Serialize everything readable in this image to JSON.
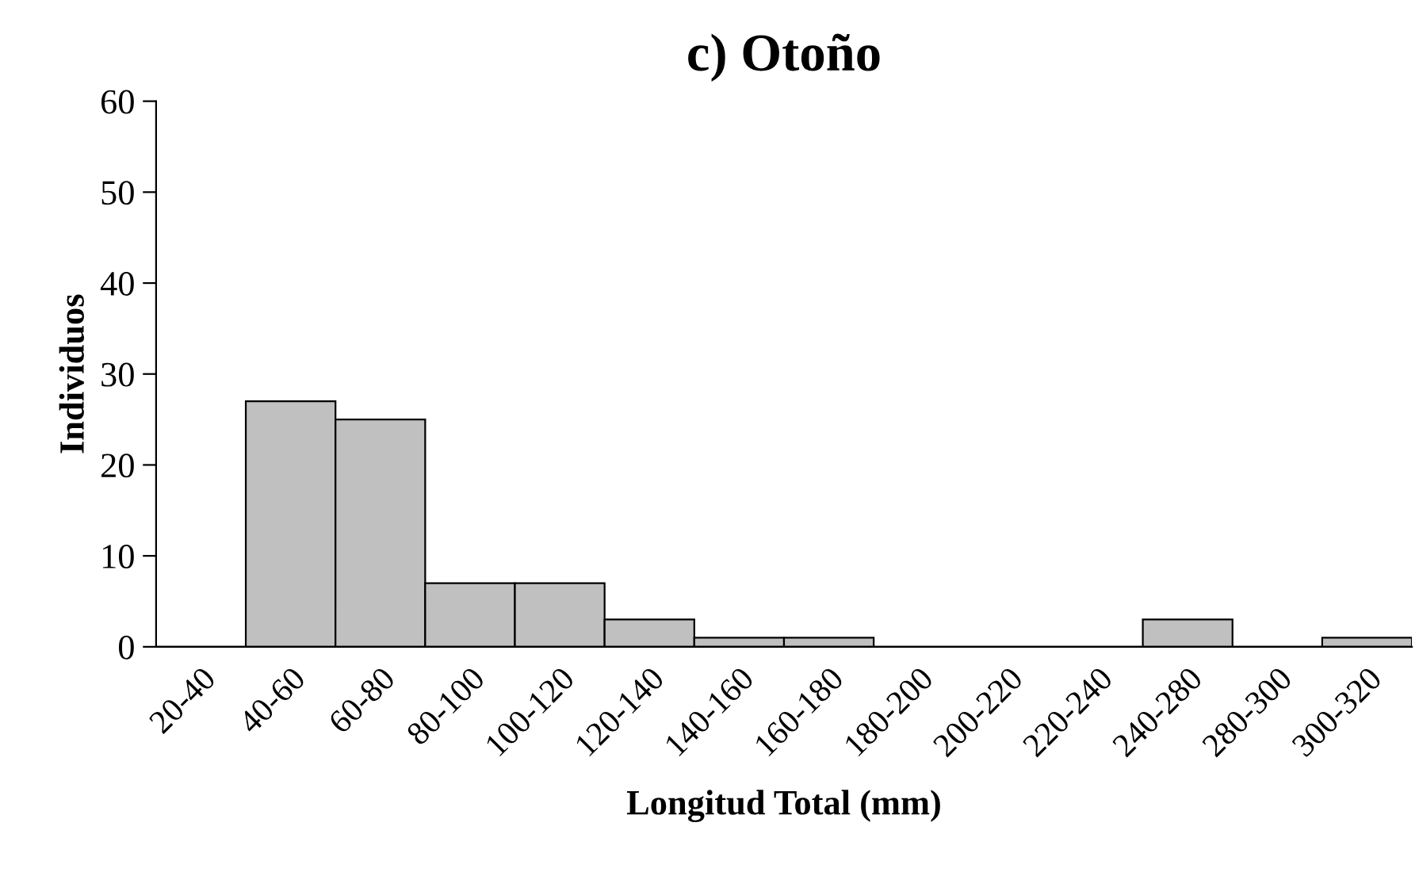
{
  "chart_data": {
    "type": "bar",
    "title": "c) Otoño",
    "xlabel": "Longitud Total (mm)",
    "ylabel": "Individuos",
    "categories": [
      "20-40",
      "40-60",
      "60-80",
      "80-100",
      "100-120",
      "120-140",
      "140-160",
      "160-180",
      "180-200",
      "200-220",
      "220-240",
      "240-280",
      "280-300",
      "300-320"
    ],
    "values": [
      0,
      27,
      25,
      7,
      7,
      3,
      1,
      1,
      0,
      0,
      0,
      3,
      0,
      1
    ],
    "color": "#c0c0c0",
    "ylim": [
      0,
      60
    ],
    "yticks": [
      0,
      10,
      20,
      30,
      40,
      50,
      60
    ],
    "grid": false
  }
}
